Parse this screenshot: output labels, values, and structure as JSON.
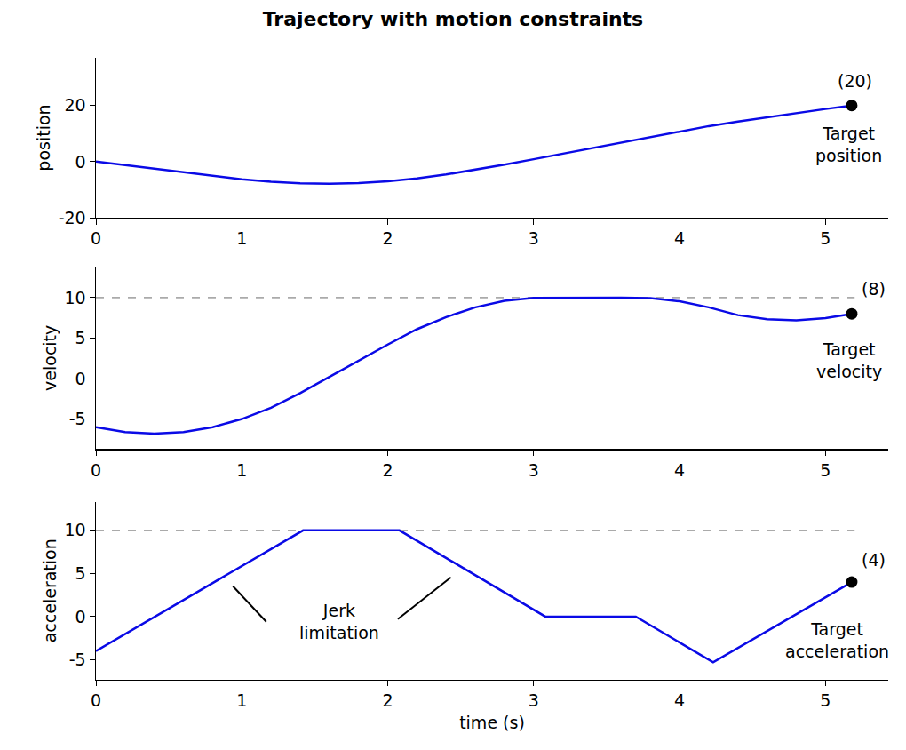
{
  "chart_data": [
    {
      "type": "line",
      "title": "Trajectory with motion constraints",
      "ylabel": "position",
      "x": [
        0,
        0.2,
        0.4,
        0.6,
        0.8,
        1.0,
        1.2,
        1.4,
        1.6,
        1.8,
        2.0,
        2.2,
        2.4,
        2.6,
        2.8,
        3.0,
        3.2,
        3.4,
        3.6,
        3.8,
        4.0,
        4.2,
        4.4,
        4.6,
        4.8,
        5.0,
        5.18
      ],
      "series": [
        {
          "type": "line",
          "color": "#0a0ae6",
          "line_style": "solid",
          "values": [
            0,
            -1.26,
            -2.6,
            -3.94,
            -5.2,
            -6.3,
            -7.16,
            -7.7,
            -7.86,
            -7.62,
            -6.98,
            -5.95,
            -4.58,
            -2.94,
            -1.1,
            0.86,
            2.86,
            4.86,
            6.86,
            8.86,
            10.81,
            12.65,
            14.31,
            15.83,
            17.28,
            18.75,
            20
          ]
        },
        {
          "type": "scatter",
          "marker": "circle",
          "color": "#000000",
          "x": [
            5.18
          ],
          "values": [
            20
          ]
        }
      ],
      "xlim": [
        0,
        5.43
      ],
      "xticks": [
        0,
        1,
        2,
        3,
        4,
        5
      ],
      "ylim": [
        -20,
        37
      ],
      "yticks": [
        -20,
        0,
        20
      ],
      "annotations": [
        {
          "text": "(20)",
          "x": 5.2,
          "y": 28.8
        },
        {
          "text": "Target\nposition",
          "x": 5.16,
          "y": 6.1
        }
      ]
    },
    {
      "type": "line",
      "ylabel": "velocity",
      "x": [
        0,
        0.2,
        0.4,
        0.6,
        0.8,
        1.0,
        1.2,
        1.4,
        1.6,
        1.8,
        2.0,
        2.2,
        2.4,
        2.6,
        2.8,
        3.0,
        3.2,
        3.4,
        3.6,
        3.8,
        4.0,
        4.2,
        4.4,
        4.6,
        4.8,
        5.0,
        5.18
      ],
      "series": [
        {
          "type": "line",
          "color": "#aaaaaa",
          "line_style": "dashed",
          "x": [
            0,
            5.2
          ],
          "values": [
            10,
            10
          ]
        },
        {
          "type": "line",
          "color": "#0a0ae6",
          "line_style": "solid",
          "values": [
            -6,
            -6.6,
            -6.8,
            -6.6,
            -6,
            -5,
            -3.6,
            -1.8,
            0.2,
            2.2,
            4.2,
            6.1,
            7.6,
            8.8,
            9.6,
            9.98,
            10,
            10,
            10,
            9.95,
            9.55,
            8.8,
            7.84,
            7.32,
            7.2,
            7.48,
            8
          ]
        },
        {
          "type": "scatter",
          "marker": "circle",
          "color": "#000000",
          "x": [
            5.18
          ],
          "values": [
            8
          ]
        }
      ],
      "xlim": [
        0,
        5.43
      ],
      "xticks": [
        0,
        1,
        2,
        3,
        4,
        5
      ],
      "ylim": [
        -8.7,
        13.8
      ],
      "yticks": [
        -5,
        0,
        5,
        10
      ],
      "annotations": [
        {
          "text": "(8)",
          "x": 5.33,
          "y": 11.1
        },
        {
          "text": "Target\nvelocity",
          "x": 5.16,
          "y": 2.3
        }
      ]
    },
    {
      "type": "line",
      "ylabel": "acceleration",
      "xlabel": "time (s)",
      "x": [
        0,
        1.42,
        2.08,
        3.08,
        3.7,
        4.23,
        5.18
      ],
      "series": [
        {
          "type": "line",
          "color": "#aaaaaa",
          "line_style": "dashed",
          "x": [
            0,
            5.2
          ],
          "values": [
            10,
            10
          ]
        },
        {
          "type": "line",
          "color": "#0a0ae6",
          "line_style": "solid",
          "values": [
            -4,
            10,
            10,
            0,
            0,
            -5.3,
            4
          ]
        },
        {
          "type": "scatter",
          "marker": "circle",
          "color": "#000000",
          "x": [
            5.18
          ],
          "values": [
            4
          ]
        }
      ],
      "xlim": [
        0,
        5.43
      ],
      "xticks": [
        0,
        1,
        2,
        3,
        4,
        5
      ],
      "ylim": [
        -7.3,
        13.3
      ],
      "yticks": [
        -5,
        0,
        5,
        10
      ],
      "annotations": [
        {
          "text": "(4)",
          "x": 5.33,
          "y": 6.6
        },
        {
          "text": "Target\nacceleration",
          "x": 5.08,
          "y": -2.7
        },
        {
          "text": "Jerk\nlimitation",
          "x": 1.67,
          "y": -0.6,
          "pointers": true
        }
      ]
    }
  ]
}
